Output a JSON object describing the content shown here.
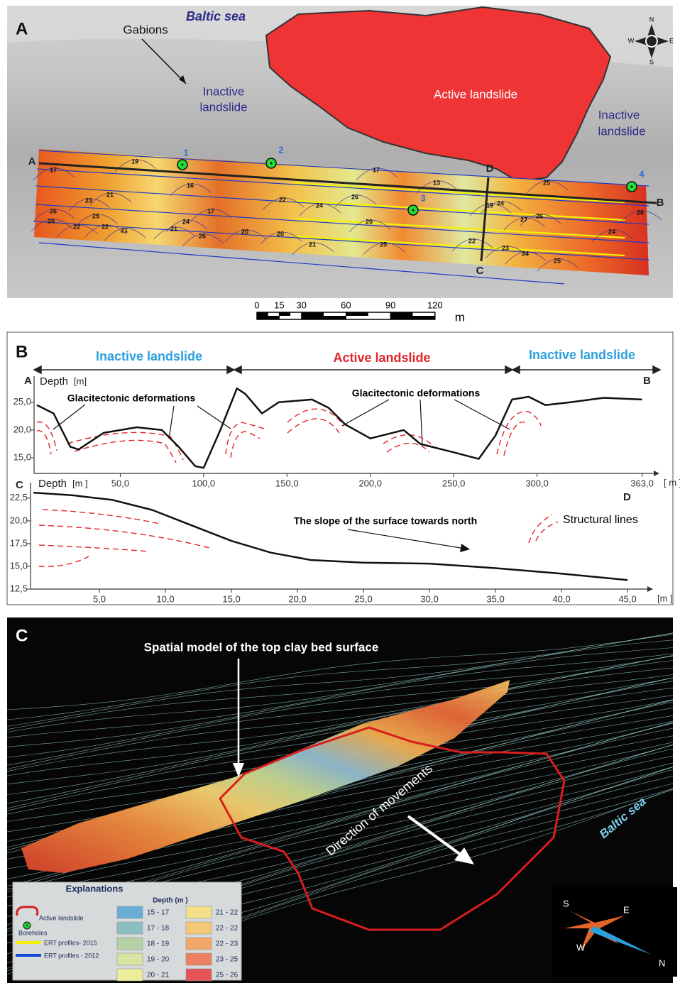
{
  "panel_a": {
    "label": "A",
    "sea": "Baltic sea",
    "gabions": "Gabions",
    "inactive_left": [
      "Inactive",
      "landslide"
    ],
    "active": "Active landslide",
    "inactive_right": [
      "Inactive",
      "landslide"
    ],
    "line_ends": [
      "A",
      "B",
      "C",
      "D"
    ],
    "boreholes": [
      "1",
      "2",
      "3",
      "4"
    ],
    "contour_labels": [
      "17",
      "19",
      "21",
      "23",
      "26",
      "25",
      "22",
      "22",
      "25",
      "21",
      "16",
      "17",
      "24",
      "21",
      "26",
      "20",
      "20",
      "22",
      "24",
      "26",
      "21",
      "20",
      "25",
      "17",
      "13",
      "19",
      "24",
      "26",
      "27",
      "23",
      "24",
      "25",
      "22",
      "25",
      "26",
      "24"
    ],
    "compass": [
      "N",
      "S",
      "E",
      "W"
    ],
    "scale_bar": {
      "ticks": [
        0,
        15,
        30,
        60,
        90,
        120
      ],
      "unit": "m"
    }
  },
  "panel_b": {
    "label": "B",
    "sections": [
      "Inactive landslide",
      "Active landslide",
      "Inactive landslide"
    ],
    "annotations": [
      "Glacitectonic deformations",
      "Glacitectonic deformations"
    ],
    "profile_ab": {
      "start": "A",
      "end": "B",
      "ylabel": "Depth",
      "yunit": "[m]",
      "xunit": "[ m ]",
      "x": [
        0,
        10,
        20,
        25,
        40,
        60,
        75,
        85,
        95,
        100,
        110,
        120,
        125,
        135,
        145,
        165,
        175,
        185,
        200,
        220,
        230,
        250,
        265,
        275,
        285,
        295,
        305,
        320,
        340,
        363
      ],
      "y": [
        24.5,
        23,
        17,
        16.5,
        19.5,
        20.5,
        20,
        17,
        13.5,
        13.2,
        20,
        27.5,
        26.5,
        23,
        25,
        25.5,
        24,
        21,
        18.5,
        20,
        17.5,
        16,
        14.8,
        19,
        25.5,
        26,
        24.5,
        25,
        25.8,
        25.5
      ],
      "xlim": [
        0,
        370
      ],
      "ylim": [
        12.2,
        29.7
      ],
      "xticks": [
        {
          "value": 50,
          "label": "50,0"
        },
        {
          "value": 100,
          "label": "100,0"
        },
        {
          "value": 150,
          "label": "150,0"
        },
        {
          "value": 200,
          "label": "200,0"
        },
        {
          "value": 250,
          "label": "250,0"
        },
        {
          "value": 300,
          "label": "300,0"
        },
        {
          "value": 363,
          "label": "363,0"
        }
      ],
      "yticks": [
        {
          "value": 25,
          "label": "25,0"
        },
        {
          "value": 20,
          "label": "20,0"
        },
        {
          "value": 15,
          "label": "15,0"
        }
      ],
      "color": "#111111"
    },
    "profile_cd": {
      "start": "C",
      "end": "D",
      "ylabel": "Depth",
      "yunit": "[m ]",
      "xunit": "[m ]",
      "x": [
        0,
        3,
        6,
        9,
        12,
        15,
        18,
        21,
        25,
        30,
        35,
        40,
        45
      ],
      "y": [
        23.1,
        22.8,
        22.3,
        21.2,
        19.5,
        17.8,
        16.5,
        15.7,
        15.4,
        15.3,
        14.8,
        14.2,
        13.5
      ],
      "xlim": [
        0,
        46.5
      ],
      "ylim": [
        12.5,
        24.2
      ],
      "xticks": [
        {
          "value": 5,
          "label": "5,0"
        },
        {
          "value": 10,
          "label": "10,0"
        },
        {
          "value": 15,
          "label": "15,0"
        },
        {
          "value": 20,
          "label": "20,0"
        },
        {
          "value": 25,
          "label": "25,0"
        },
        {
          "value": 30,
          "label": "30,0"
        },
        {
          "value": 35,
          "label": "35,0"
        },
        {
          "value": 40,
          "label": "40,0"
        },
        {
          "value": 45,
          "label": "45,0"
        }
      ],
      "yticks": [
        {
          "value": 22.5,
          "label": "22,5"
        },
        {
          "value": 20,
          "label": "20,0"
        },
        {
          "value": 17.5,
          "label": "17,5"
        },
        {
          "value": 15,
          "label": "15,0"
        },
        {
          "value": 12.5,
          "label": "12,5"
        }
      ],
      "color": "#111111"
    },
    "slope_note": "The slope of the surface towards north",
    "structural_lines": "Structural lines"
  },
  "panel_c": {
    "label": "C",
    "model_note": "Spatial model of the top clay bed surface",
    "movement": "Direction of movements",
    "sea": "Baltic sea",
    "legend": {
      "title": "Explanations",
      "depth_title": "Depth (m )",
      "items": [
        "Active landslide",
        "Boreholes",
        "ERT profiles- 2015",
        "ERT profiles - 2012"
      ],
      "depth_classes": [
        {
          "label": "15 - 17",
          "color": "#6aaed6"
        },
        {
          "label": "17 - 18",
          "color": "#8cbfc4"
        },
        {
          "label": "18 - 19",
          "color": "#b5d1a6"
        },
        {
          "label": "19 - 20",
          "color": "#d7e3a0"
        },
        {
          "label": "20 - 21",
          "color": "#ecec9a"
        },
        {
          "label": "21 - 22",
          "color": "#f4e08a"
        },
        {
          "label": "22 - 22",
          "color": "#f6c978"
        },
        {
          "label": "22 - 23",
          "color": "#f2a76a"
        },
        {
          "label": "23 - 25",
          "color": "#ec8060"
        },
        {
          "label": "25 - 26",
          "color": "#e6545a"
        }
      ]
    },
    "compass": [
      "S",
      "E",
      "W",
      "N"
    ]
  }
}
